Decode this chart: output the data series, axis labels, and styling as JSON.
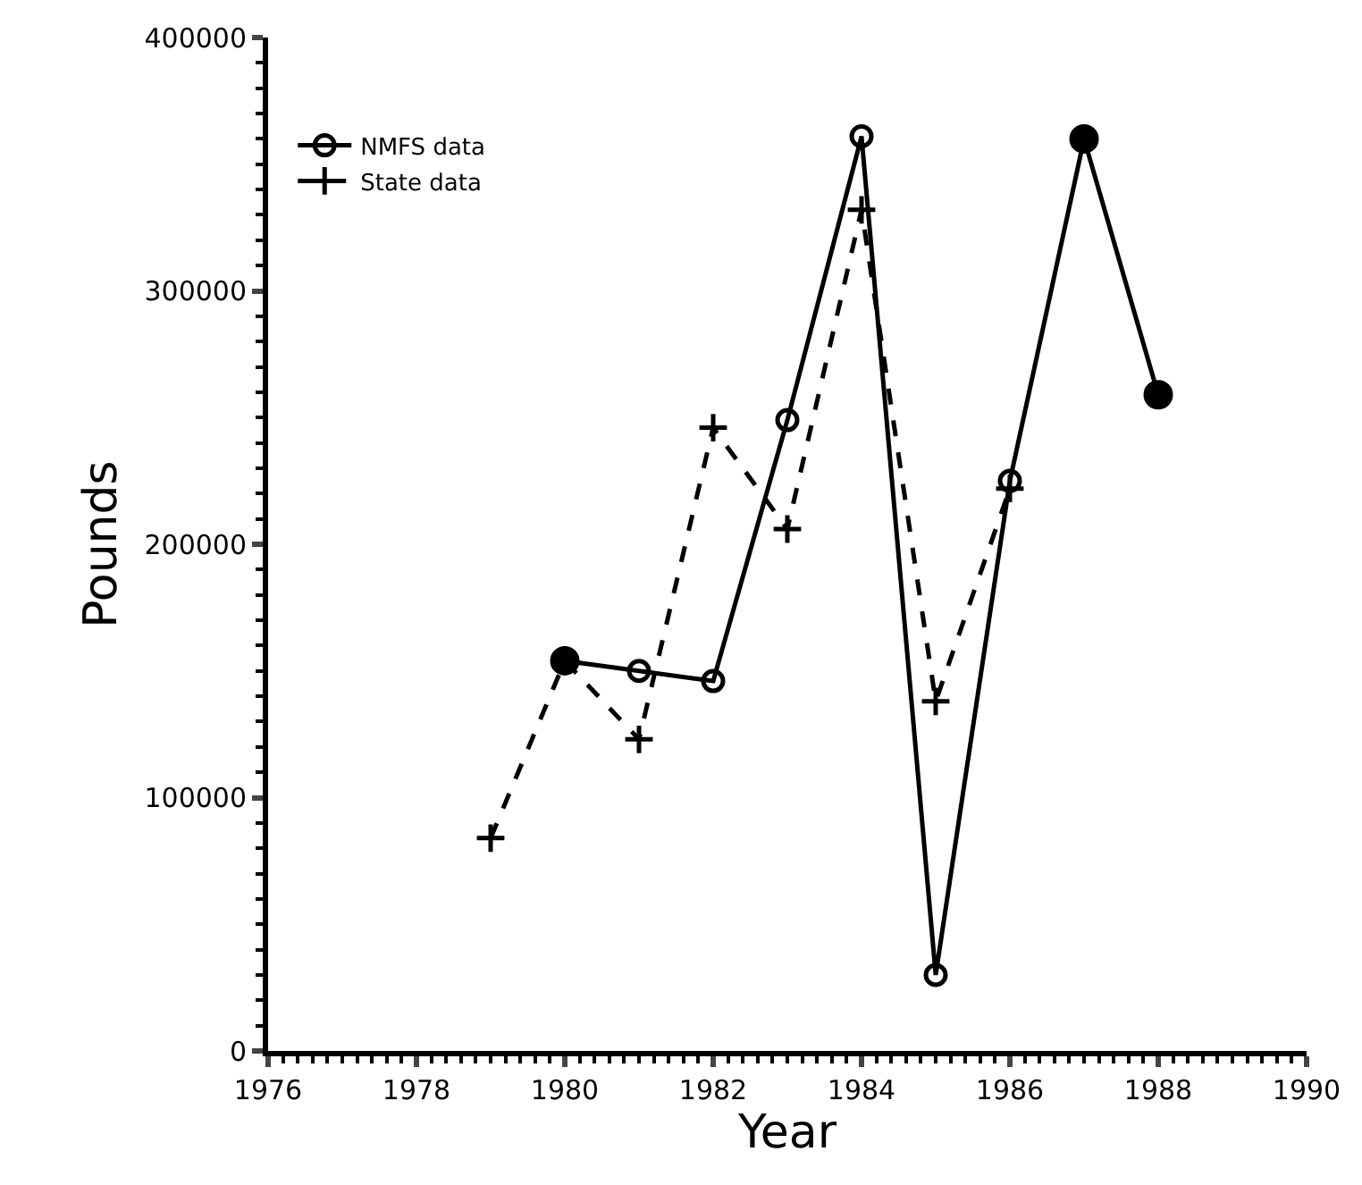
{
  "chart_data": {
    "type": "line",
    "xlabel": "Year",
    "ylabel": "Pounds",
    "xlim": [
      1976,
      1990
    ],
    "xticks": [
      1976,
      1978,
      1980,
      1982,
      1984,
      1986,
      1988,
      1990
    ],
    "ylim": [
      0,
      400000
    ],
    "yticks": [
      0,
      100000,
      200000,
      300000,
      400000
    ],
    "legend": "top left",
    "series": [
      {
        "name": "NMFS data",
        "color": "#000000",
        "marker": "circle",
        "line_style": "solid",
        "x": [
          1980,
          1981,
          1982,
          1983,
          1984,
          1985,
          1986,
          1987,
          1988
        ],
        "values": [
          154000,
          150000,
          146000,
          249000,
          361000,
          30000,
          225000,
          360000,
          259000
        ]
      },
      {
        "name": "State data",
        "color": "#000000",
        "marker": "cross",
        "line_style": "dashed",
        "x": [
          1979,
          1980,
          1981,
          1982,
          1983,
          1984,
          1985,
          1986
        ],
        "values": [
          84000,
          154000,
          123000,
          246000,
          206000,
          332000,
          138000,
          222000
        ]
      },
      {
        "type": "scatter",
        "color": "#000000",
        "marker": "circle",
        "x": [
          1980,
          1987,
          1988
        ],
        "values": [
          154000,
          360000,
          259000
        ]
      }
    ]
  }
}
